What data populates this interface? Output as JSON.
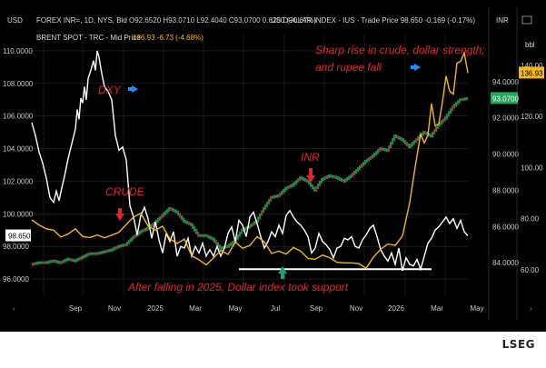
{
  "header": {
    "usd_label": "USD",
    "inr_title": "FOREX INR=, 1D, NYS, Bid",
    "inr_ohlc": "O92.6520 H93.0710 L92.4040 C93.0700 0.6200 (+0.67%)",
    "dxy_title": "US DOLLAR INDEX - IUS - Trade Price 98.650 -0.169 (-0.17%)",
    "brent_title": "BRENT SPOT - TRC - Mid Price",
    "brent_values": "136.93 -6.73 (-4.68%)",
    "inr_axis_label": "INR",
    "bbl_axis_label": "bbl",
    "usd_axis_label": "USD"
  },
  "badges": {
    "dxy_last": "98.650",
    "inr_last": "93.0700",
    "brent_last": "136.93"
  },
  "annotations": {
    "dxy": "DXY",
    "crude": "CRUDE",
    "inr": "INR",
    "top_line1": "Sharp rise in crude, dollar strength;",
    "top_line2": "and rupee fall",
    "bottom": "After falling in 2025, Dollar index took support"
  },
  "footer": {
    "brand": "LSEG"
  },
  "colors": {
    "dxy": "#ffffff",
    "brent": "#f0b818",
    "inr_up": "#26a65b",
    "inr_down": "#d83a3a",
    "annotation": "#e0262c",
    "arrow_blue": "#1e90ff",
    "arrow_green": "#1aa37a",
    "grid": "#2b2b2b",
    "badge_inr": "#26a65b",
    "badge_brent": "#f0b818",
    "badge_dxy": "#ffffff"
  },
  "chart_data": {
    "type": "line",
    "x_ticks": [
      "Sep",
      "Nov",
      "2025",
      "Mar",
      "May",
      "Jul",
      "Sep",
      "Nov",
      "2026",
      "Mar",
      "May"
    ],
    "axes": {
      "dxy": {
        "unit": "USD",
        "ylim": [
          95,
          111
        ],
        "ticks": [
          96.0,
          98.0,
          100.0,
          102.0,
          104.0,
          106.0,
          108.0,
          110.0
        ]
      },
      "inr": {
        "unit": "INR",
        "ylim": [
          82.2,
          96.6
        ],
        "ticks": [
          84.0,
          86.0,
          88.0,
          90.0,
          92.0,
          94.0
        ]
      },
      "brent": {
        "unit": "bbl",
        "ylim": [
          50,
          152
        ],
        "ticks": [
          60.0,
          80.0,
          100.0,
          120.0,
          140.0
        ]
      }
    },
    "series": [
      {
        "name": "US DOLLAR INDEX",
        "axis": "dxy",
        "x": [
          0,
          4,
          8,
          12,
          16,
          20,
          24,
          27,
          30,
          33,
          36,
          40,
          44,
          48,
          50,
          52,
          54,
          56,
          58,
          60,
          62,
          65,
          68,
          70,
          72,
          74,
          77,
          80,
          84,
          88,
          92,
          96,
          100,
          104,
          108,
          112,
          116,
          120,
          124,
          128,
          132,
          136,
          140,
          144,
          148,
          152,
          156,
          160,
          164,
          168,
          172,
          176,
          180,
          184,
          188,
          192,
          196,
          200,
          204,
          208,
          212,
          216,
          220,
          224,
          228,
          232,
          236,
          240,
          244,
          248,
          252,
          256,
          260,
          264,
          268,
          272,
          276,
          280,
          284,
          288,
          292,
          296,
          300,
          304,
          308,
          312,
          316,
          320,
          324,
          328,
          332,
          336,
          340,
          344,
          348,
          352,
          356,
          360,
          364,
          368,
          372,
          376,
          380,
          384,
          388,
          392,
          396,
          400,
          404,
          408,
          412,
          416,
          420,
          424,
          428,
          432,
          436,
          440,
          444,
          448,
          452,
          456,
          460,
          464,
          468,
          472,
          476,
          480
        ],
        "y": [
          105.6,
          104.8,
          103.8,
          103.1,
          102.2,
          101.0,
          100.7,
          101.4,
          100.8,
          101.6,
          102.3,
          103.4,
          104.3,
          105.2,
          106.4,
          105.8,
          107.1,
          106.8,
          107.8,
          107.0,
          108.3,
          108.8,
          109.4,
          108.8,
          110.0,
          109.6,
          108.6,
          107.8,
          107.5,
          107.0,
          104.8,
          103.9,
          104.1,
          103.3,
          100.5,
          99.8,
          98.7,
          99.9,
          100.4,
          99.7,
          98.5,
          99.5,
          98.4,
          97.6,
          98.8,
          98.3,
          98.9,
          97.4,
          98.0,
          97.9,
          98.5,
          97.4,
          98.0,
          97.6,
          98.2,
          97.4,
          97.8,
          97.4,
          98.0,
          97.4,
          97.9,
          98.8,
          99.2,
          98.3,
          99.6,
          99.3,
          98.6,
          99.8,
          100.1,
          99.4,
          98.6,
          97.9,
          98.3,
          98.9,
          98.6,
          99.3,
          98.8,
          99.9,
          100.2,
          99.8,
          99.5,
          99.3,
          99.0,
          98.6,
          97.6,
          97.9,
          98.8,
          98.3,
          98.1,
          97.8,
          97.3,
          97.9,
          98.0,
          98.5,
          98.4,
          98.6,
          98.0,
          97.9,
          98.4,
          98.7,
          99.1,
          99.3,
          98.6,
          97.8,
          97.4,
          97.1,
          97.6,
          96.9,
          97.9,
          96.5,
          97.3,
          96.9,
          96.8,
          97.2,
          96.6,
          97.4,
          98.2,
          98.5,
          99.0,
          99.2,
          99.5,
          99.8,
          99.4,
          99.7,
          99.1,
          99.6,
          98.9,
          98.65
        ]
      },
      {
        "name": "BRENT SPOT",
        "axis": "brent",
        "x": [
          0,
          8,
          16,
          24,
          32,
          40,
          48,
          56,
          64,
          72,
          80,
          88,
          96,
          104,
          112,
          120,
          128,
          136,
          144,
          152,
          160,
          168,
          176,
          184,
          192,
          200,
          208,
          216,
          224,
          232,
          240,
          248,
          256,
          264,
          272,
          280,
          288,
          296,
          304,
          312,
          320,
          328,
          336,
          344,
          352,
          360,
          368,
          376,
          384,
          392,
          400,
          408,
          416,
          420,
          424,
          428,
          432,
          436,
          440,
          444,
          448,
          452,
          456,
          460,
          464,
          468,
          472,
          476,
          480
        ],
        "y": [
          79.5,
          77.5,
          76.0,
          75.5,
          72.8,
          74.0,
          76.0,
          73.0,
          72.6,
          73.6,
          72.5,
          73.5,
          74.7,
          77.7,
          80.6,
          82.1,
          77.1,
          75.5,
          77.0,
          72.1,
          70.3,
          72.0,
          65.4,
          63.9,
          61.9,
          64.6,
          67.6,
          66.0,
          70.8,
          68.4,
          69.5,
          73.0,
          70.9,
          66.4,
          67.3,
          66.1,
          68.7,
          67.3,
          64.4,
          64.1,
          65.7,
          64.7,
          62.9,
          62.7,
          62.7,
          62.4,
          60.6,
          64.9,
          68.0,
          70.1,
          69.5,
          73.2,
          86.3,
          95.7,
          104.5,
          113.0,
          109.6,
          112.6,
          125.0,
          116.3,
          117.1,
          125.6,
          135.8,
          129.8,
          128.7,
          140.8,
          141.5,
          144.8,
          136.93
        ]
      },
      {
        "name": "FOREX INR=",
        "axis": "inr",
        "x": [
          0,
          8,
          16,
          24,
          32,
          40,
          48,
          56,
          64,
          72,
          80,
          88,
          96,
          104,
          112,
          120,
          128,
          136,
          144,
          152,
          160,
          168,
          176,
          184,
          192,
          200,
          208,
          216,
          224,
          232,
          240,
          248,
          256,
          264,
          272,
          280,
          288,
          296,
          304,
          312,
          320,
          328,
          336,
          344,
          352,
          360,
          368,
          376,
          384,
          392,
          400,
          408,
          416,
          424,
          432,
          440,
          448,
          456,
          464,
          472,
          480
        ],
        "y": [
          83.9,
          84.0,
          84.0,
          84.1,
          84.0,
          84.2,
          84.1,
          84.3,
          84.5,
          84.5,
          84.6,
          84.7,
          84.9,
          85.0,
          85.4,
          85.7,
          85.9,
          86.2,
          86.6,
          87.0,
          86.8,
          86.3,
          86.1,
          85.5,
          85.5,
          85.3,
          84.8,
          84.9,
          85.2,
          85.8,
          86.0,
          86.3,
          87.0,
          87.6,
          87.7,
          88.1,
          88.3,
          88.7,
          88.5,
          88.0,
          88.6,
          88.8,
          88.7,
          88.5,
          88.8,
          89.2,
          89.6,
          89.9,
          90.3,
          90.2,
          91.0,
          90.8,
          90.4,
          90.8,
          91.2,
          91.0,
          91.6,
          92.0,
          92.6,
          93.0,
          93.07
        ]
      }
    ]
  }
}
